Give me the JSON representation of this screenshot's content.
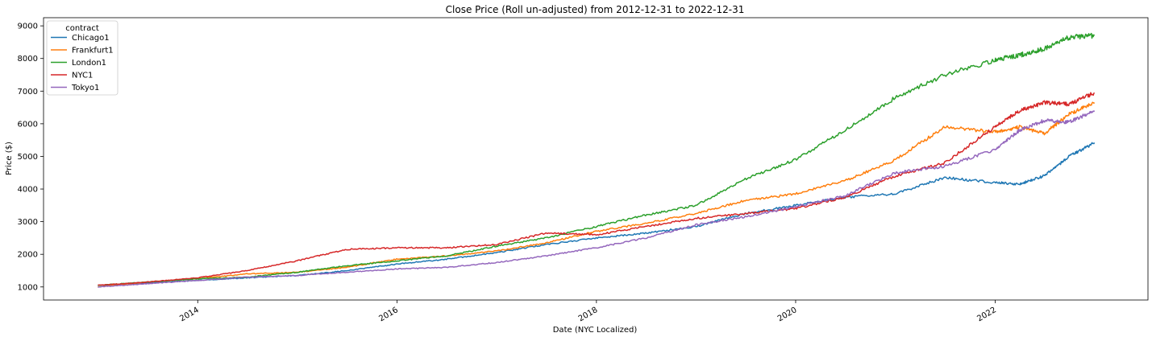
{
  "chart_data": {
    "type": "line",
    "title": "Close Price (Roll un-adjusted) from 2012-12-31 to 2022-12-31",
    "xlabel": "Date (NYC Localized)",
    "ylabel": "Price ($)",
    "xlim": [
      "2012-06-15",
      "2023-07-15"
    ],
    "ylim": [
      600,
      9250
    ],
    "x_ticks": [
      "2014-01-01",
      "2016-01-01",
      "2018-01-01",
      "2020-01-01",
      "2022-01-01"
    ],
    "x_tick_labels": [
      "2014",
      "2016",
      "2018",
      "2020",
      "2022"
    ],
    "y_ticks": [
      1000,
      2000,
      3000,
      4000,
      5000,
      6000,
      7000,
      8000,
      9000
    ],
    "legend": {
      "title": "contract",
      "placement": "upper-left"
    },
    "grid": false,
    "series": [
      {
        "name": "Chicago1",
        "color": "#1f77b4",
        "x": [
          "2012-12-31",
          "2013-06-30",
          "2013-12-31",
          "2014-06-30",
          "2014-12-31",
          "2015-06-30",
          "2015-12-31",
          "2016-06-30",
          "2016-12-31",
          "2017-06-30",
          "2017-12-31",
          "2018-06-30",
          "2018-12-31",
          "2019-06-30",
          "2019-12-31",
          "2020-06-30",
          "2020-12-31",
          "2021-06-30",
          "2021-12-31",
          "2022-03-31",
          "2022-06-30",
          "2022-09-30",
          "2022-12-31"
        ],
        "values": [
          1050,
          1120,
          1200,
          1280,
          1350,
          1500,
          1700,
          1850,
          2050,
          2300,
          2500,
          2650,
          2850,
          3250,
          3500,
          3750,
          3850,
          4350,
          4200,
          4150,
          4400,
          5000,
          5420
        ]
      },
      {
        "name": "Frankfurt1",
        "color": "#ff7f0e",
        "x": [
          "2012-12-31",
          "2013-06-30",
          "2013-12-31",
          "2014-06-30",
          "2014-12-31",
          "2015-06-30",
          "2015-12-31",
          "2016-06-30",
          "2016-12-31",
          "2017-06-30",
          "2017-12-31",
          "2018-06-30",
          "2018-12-31",
          "2019-06-30",
          "2019-12-31",
          "2020-06-30",
          "2020-12-31",
          "2021-06-30",
          "2021-12-31",
          "2022-03-31",
          "2022-06-30",
          "2022-09-30",
          "2022-12-31"
        ],
        "values": [
          1000,
          1150,
          1250,
          1400,
          1450,
          1600,
          1850,
          1950,
          2100,
          2350,
          2700,
          2950,
          3250,
          3650,
          3850,
          4250,
          4900,
          5900,
          5750,
          5900,
          5700,
          6300,
          6650
        ]
      },
      {
        "name": "London1",
        "color": "#2ca02c",
        "x": [
          "2012-12-31",
          "2013-06-30",
          "2013-12-31",
          "2014-06-30",
          "2014-12-31",
          "2015-06-30",
          "2015-12-31",
          "2016-06-30",
          "2016-12-31",
          "2017-06-30",
          "2017-12-31",
          "2018-06-30",
          "2018-12-31",
          "2019-06-30",
          "2019-12-31",
          "2020-06-30",
          "2020-12-31",
          "2021-06-30",
          "2021-12-31",
          "2022-03-31",
          "2022-06-30",
          "2022-09-30",
          "2022-12-31"
        ],
        "values": [
          1050,
          1150,
          1250,
          1300,
          1450,
          1650,
          1800,
          1950,
          2250,
          2500,
          2850,
          3200,
          3500,
          4300,
          4900,
          5800,
          6800,
          7500,
          7950,
          8100,
          8300,
          8650,
          8700
        ]
      },
      {
        "name": "NYC1",
        "color": "#d62728",
        "x": [
          "2012-12-31",
          "2013-06-30",
          "2013-12-31",
          "2014-06-30",
          "2014-12-31",
          "2015-06-30",
          "2015-12-31",
          "2016-06-30",
          "2016-12-31",
          "2017-06-30",
          "2017-12-31",
          "2018-06-30",
          "2018-12-31",
          "2019-06-30",
          "2019-12-31",
          "2020-06-30",
          "2020-12-31",
          "2021-06-30",
          "2021-12-31",
          "2022-03-31",
          "2022-06-30",
          "2022-09-30",
          "2022-12-31"
        ],
        "values": [
          1050,
          1150,
          1280,
          1500,
          1800,
          2150,
          2200,
          2200,
          2300,
          2650,
          2600,
          2850,
          3100,
          3250,
          3400,
          3750,
          4400,
          4800,
          5900,
          6400,
          6650,
          6600,
          6950
        ]
      },
      {
        "name": "Tokyo1",
        "color": "#9467bd",
        "x": [
          "2012-12-31",
          "2013-06-30",
          "2013-12-31",
          "2014-06-30",
          "2014-12-31",
          "2015-06-30",
          "2015-12-31",
          "2016-06-30",
          "2016-12-31",
          "2017-06-30",
          "2017-12-31",
          "2018-06-30",
          "2018-12-31",
          "2019-06-30",
          "2019-12-31",
          "2020-06-30",
          "2020-12-31",
          "2021-06-30",
          "2021-12-31",
          "2022-03-31",
          "2022-06-30",
          "2022-09-30",
          "2022-12-31"
        ],
        "values": [
          1000,
          1100,
          1200,
          1300,
          1350,
          1450,
          1550,
          1600,
          1750,
          1950,
          2200,
          2500,
          2900,
          3150,
          3450,
          3800,
          4500,
          4700,
          5200,
          5800,
          6100,
          6050,
          6400
        ]
      }
    ]
  }
}
